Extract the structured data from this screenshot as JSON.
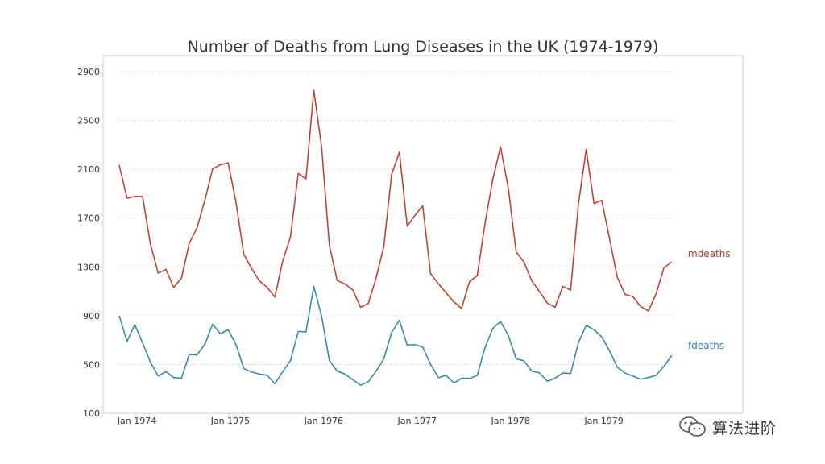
{
  "chart_data": {
    "type": "line",
    "title": "Number of Deaths from Lung Diseases in the UK (1974-1979)",
    "xlabel": "",
    "ylabel": "",
    "ylim": [
      100,
      3000
    ],
    "yticks": [
      "100",
      "500",
      "900",
      "1300",
      "1700",
      "2100",
      "2500",
      "2900"
    ],
    "xticks": [
      "Jan 1974",
      "Jan 1975",
      "Jan 1976",
      "Jan 1977",
      "Jan 1978",
      "Jan 1979"
    ],
    "grid": "horizontal dotted",
    "legend": "series labels at right end of lines",
    "series": [
      {
        "name": "mdeaths",
        "color": "#c0392b",
        "values": [
          2134,
          1863,
          1877,
          1877,
          1492,
          1249,
          1280,
          1131,
          1209,
          1492,
          1621,
          1846,
          2103,
          2137,
          2153,
          1833,
          1403,
          1288,
          1186,
          1133,
          1053,
          1347,
          1545,
          2066,
          2020,
          2750,
          2283,
          1479,
          1189,
          1160,
          1113,
          970,
          999,
          1208,
          1467,
          2059,
          2240,
          1634,
          1722,
          1801,
          1246,
          1162,
          1087,
          1013,
          959,
          1179,
          1229,
          1655,
          2019,
          2284,
          1942,
          1423,
          1340,
          1187,
          1098,
          1004,
          970,
          1140,
          1110,
          1812,
          2263,
          1820,
          1846,
          1531,
          1215,
          1075,
          1056,
          975,
          940,
          1081,
          1294,
          1341
        ]
      },
      {
        "name": "fdeaths",
        "color": "#2e86ab",
        "values": [
          901,
          689,
          827,
          677,
          522,
          406,
          441,
          393,
          387,
          582,
          578,
          666,
          830,
          752,
          785,
          664,
          467,
          438,
          421,
          412,
          343,
          440,
          531,
          771,
          767,
          1141,
          896,
          532,
          447,
          420,
          376,
          330,
          357,
          445,
          546,
          764,
          862,
          660,
          663,
          643,
          502,
          392,
          411,
          348,
          387,
          385,
          411,
          638,
          796,
          853,
          737,
          546,
          530,
          446,
          431,
          362,
          387,
          430,
          425,
          679,
          821,
          785,
          727,
          612,
          478,
          429,
          405,
          379,
          393,
          411,
          487,
          574
        ]
      }
    ]
  },
  "watermark": {
    "text": "算法进阶",
    "icon": "wechat-logo-icon"
  }
}
